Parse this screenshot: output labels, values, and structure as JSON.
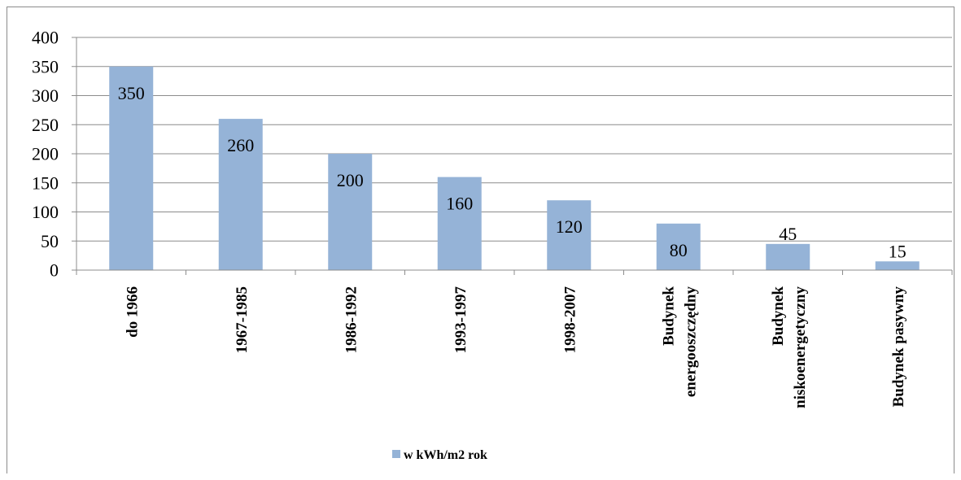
{
  "chart_data": {
    "type": "bar",
    "title": "",
    "xlabel": "",
    "ylabel": "",
    "categories": [
      [
        "do 1966"
      ],
      [
        "1967-1985"
      ],
      [
        "1986-1992"
      ],
      [
        "1993-1997"
      ],
      [
        "1998-2007"
      ],
      [
        "Budynek",
        "energooszczędny"
      ],
      [
        "Budynek",
        "niskoenergetyczny"
      ],
      [
        "Budynek pasywny"
      ]
    ],
    "series": [
      {
        "name": "w kWh/m2 rok",
        "values": [
          350,
          260,
          200,
          160,
          120,
          80,
          45,
          15
        ],
        "color": "#95b3d7"
      }
    ],
    "data_labels": [
      "350",
      "260",
      "200",
      "160",
      "120",
      "80",
      "45",
      "15"
    ],
    "y_ticks": [
      "0",
      "50",
      "100",
      "150",
      "200",
      "250",
      "300",
      "350",
      "400"
    ],
    "ylim": [
      0,
      400
    ],
    "grid": true,
    "gridline_color": "#8c8c8c",
    "legend_position": "bottom-left"
  }
}
